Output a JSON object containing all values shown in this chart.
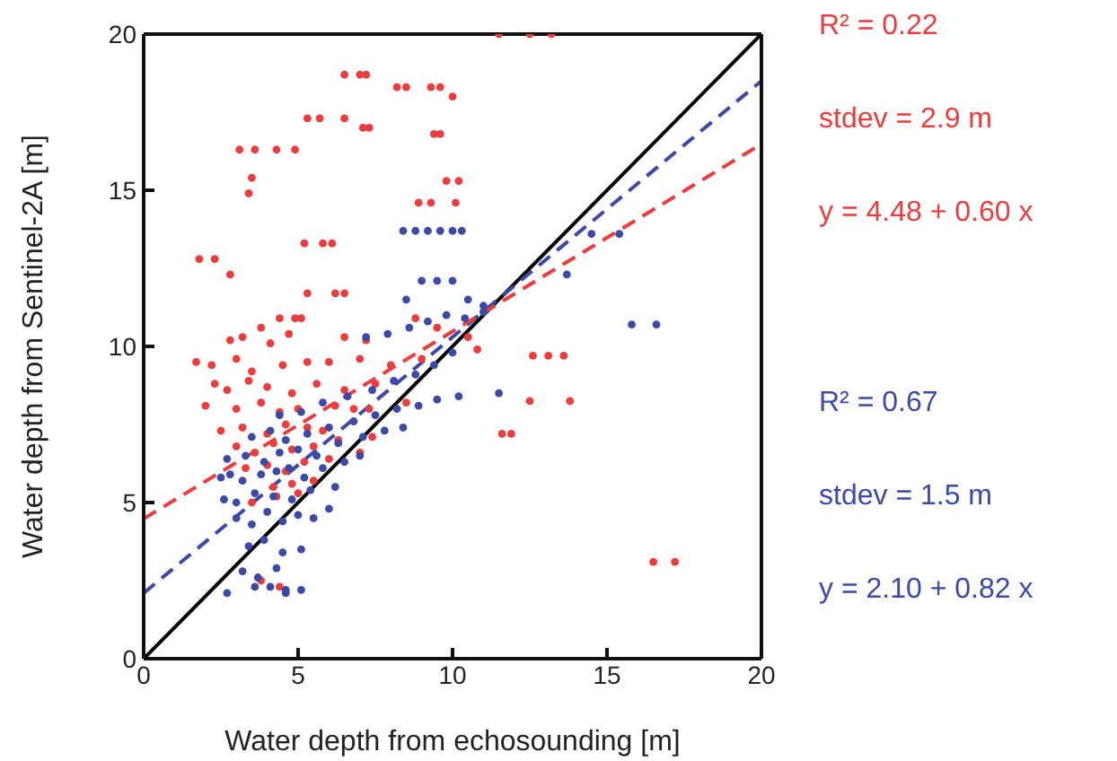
{
  "chart_data": {
    "type": "scatter",
    "xlabel": "Water depth from echosounding [m]",
    "ylabel": "Water depth from Sentinel-2A [m]",
    "xlim": [
      0,
      20
    ],
    "ylim": [
      0,
      20
    ],
    "xticks": [
      0,
      5,
      10,
      15,
      20
    ],
    "yticks": [
      0,
      5,
      10,
      15,
      20
    ],
    "marker": "circle",
    "annotations": [
      "R² = 0.22",
      "stdev = 2.9 m",
      "y = 4.48 + 0.60 x",
      "R² = 0.67",
      "stdev = 1.5 m",
      "y = 2.10 + 0.82 x"
    ],
    "series": [
      {
        "color": "#ee3b3b",
        "x": [
          6.5,
          7,
          7.2,
          8.2,
          8.5,
          9.3,
          9.6,
          10,
          5.3,
          5.7,
          6.5,
          7.1,
          7.3,
          9.4,
          9.6,
          3.1,
          3.6,
          4.3,
          4.9,
          3.5,
          3.4,
          9.8,
          10.2,
          8.9,
          9.3,
          10.1,
          5.2,
          5.8,
          6.1,
          1.8,
          2.3,
          2.8,
          5.3,
          6.2,
          6.5,
          4.4,
          4.9,
          5.1,
          11.5,
          12.5,
          13.2,
          2.8,
          3.2,
          3.8,
          4.1,
          4.7,
          6.5,
          7.2,
          1.7,
          2.2,
          3,
          3.5,
          4.5,
          5.3,
          6,
          7,
          8,
          9,
          2.3,
          2.7,
          3.4,
          4,
          4.8,
          5.6,
          6.5,
          7.5,
          2,
          3,
          3.8,
          4.4,
          5,
          6.2,
          7.3,
          8.5,
          2.5,
          3.2,
          4,
          4.6,
          5.3,
          5.8,
          6.8,
          3,
          3.6,
          4.2,
          4.8,
          5.5,
          6.3,
          7.4,
          3.3,
          4,
          4.6,
          5.2,
          6,
          7,
          4.2,
          4.8,
          5.5,
          3.5,
          4.3,
          5,
          3.8,
          4.4,
          12.6,
          13.1,
          13.6,
          12.5,
          13.8,
          11.6,
          11.9,
          16.5,
          17.2,
          10.5,
          9.5,
          8.8,
          10.8
        ],
        "values": [
          18.7,
          18.7,
          18.7,
          18.3,
          18.3,
          18.3,
          18.3,
          18,
          17.3,
          17.3,
          17.3,
          17,
          17,
          16.8,
          16.8,
          16.3,
          16.3,
          16.3,
          16.3,
          15.4,
          14.9,
          15.3,
          15.3,
          14.6,
          14.6,
          14.6,
          13.3,
          13.3,
          13.3,
          12.8,
          12.8,
          12.3,
          11.7,
          11.7,
          11.7,
          10.9,
          10.9,
          10.9,
          20,
          20,
          20,
          10.2,
          10.3,
          10.6,
          10.1,
          10.4,
          10.3,
          10.2,
          9.5,
          9.4,
          9.6,
          9.2,
          9.4,
          9.5,
          9.5,
          9.6,
          9.4,
          9.6,
          8.8,
          8.6,
          8.9,
          8.7,
          8.5,
          8.8,
          8.6,
          8.8,
          8.1,
          8,
          8.2,
          7.9,
          8,
          8.1,
          8,
          8.2,
          7.3,
          7.4,
          7.2,
          7.5,
          7.4,
          7.3,
          8,
          6.8,
          6.6,
          6.9,
          6.7,
          6.8,
          7,
          7.1,
          6.1,
          6.2,
          6,
          6.3,
          6.4,
          6.6,
          5.5,
          5.6,
          5.7,
          5,
          5.2,
          5.3,
          2.5,
          2.3,
          9.7,
          9.7,
          9.7,
          8.25,
          8.25,
          7.2,
          7.2,
          3.1,
          3.1,
          10.3,
          10.6,
          10.9,
          9.9
        ]
      },
      {
        "color": "#3b4aa8",
        "x": [
          8.4,
          8.8,
          9.2,
          9.6,
          10,
          10.3,
          9,
          9.5,
          10,
          8.5,
          10.5,
          11,
          14.5,
          15.4,
          13.7,
          15.8,
          16.6,
          3,
          3.5,
          4,
          4.5,
          5,
          5.5,
          6,
          2.6,
          3,
          3.6,
          4.2,
          4.8,
          5.4,
          6.2,
          2.5,
          2.8,
          3.2,
          3.8,
          4.3,
          4.7,
          5.2,
          5.8,
          6.5,
          7,
          2.7,
          3.3,
          3.9,
          4.4,
          5,
          5.6,
          6.3,
          7.1,
          7.8,
          8.4,
          3.5,
          4.1,
          4.6,
          5.3,
          6,
          6.8,
          7.5,
          8.2,
          8.9,
          9.5,
          10.2,
          4.4,
          5.1,
          5.8,
          6.6,
          7.4,
          8.1,
          8.8,
          9.4,
          10,
          7.2,
          7.9,
          8.6,
          9.2,
          9.8,
          10.4,
          11,
          3.4,
          3.9,
          4.5,
          5.1,
          3.2,
          3.7,
          4.3,
          4.1,
          4.6,
          2.7,
          3.6,
          4.6,
          5.1,
          11.5
        ],
        "values": [
          13.7,
          13.7,
          13.7,
          13.7,
          13.7,
          13.7,
          12.1,
          12.1,
          12.1,
          11.5,
          11.5,
          11.3,
          13.6,
          13.6,
          12.3,
          10.7,
          10.7,
          4.5,
          4.3,
          4.7,
          4.4,
          4.6,
          4.5,
          4.8,
          5.1,
          5,
          5.3,
          5.2,
          5.1,
          5.4,
          5.5,
          5.8,
          5.9,
          5.7,
          5.9,
          6,
          6.1,
          5.8,
          6.1,
          6.3,
          6.5,
          6.4,
          6.5,
          6.3,
          6.6,
          6.7,
          6.5,
          6.9,
          7.1,
          7.3,
          7.4,
          7.1,
          7.3,
          7,
          7.2,
          7.4,
          7.6,
          7.8,
          8,
          8.1,
          8.3,
          8.4,
          7.8,
          7.9,
          8.2,
          8.4,
          8.6,
          8.9,
          9.1,
          9.4,
          9.8,
          10.3,
          10.4,
          10.6,
          10.8,
          11,
          10.9,
          11.1,
          3.6,
          3.8,
          3.4,
          3.5,
          2.8,
          2.6,
          2.9,
          2.3,
          2.1,
          2.1,
          2.3,
          2.2,
          2.2,
          8.5
        ]
      },
      {
        "type": "line",
        "color": "#000000",
        "line_style": "solid",
        "marker": "none",
        "x": [
          0,
          20
        ],
        "values": [
          0,
          20
        ]
      },
      {
        "type": "line",
        "color": "#3b4aa8",
        "line_style": "dashed",
        "marker": "none",
        "x": [
          0,
          20
        ],
        "values": [
          2.1,
          18.5
        ]
      },
      {
        "type": "line",
        "color": "#ee3b3b",
        "line_style": "dashed",
        "marker": "none",
        "x": [
          0,
          20
        ],
        "values": [
          4.48,
          16.48
        ]
      }
    ]
  }
}
